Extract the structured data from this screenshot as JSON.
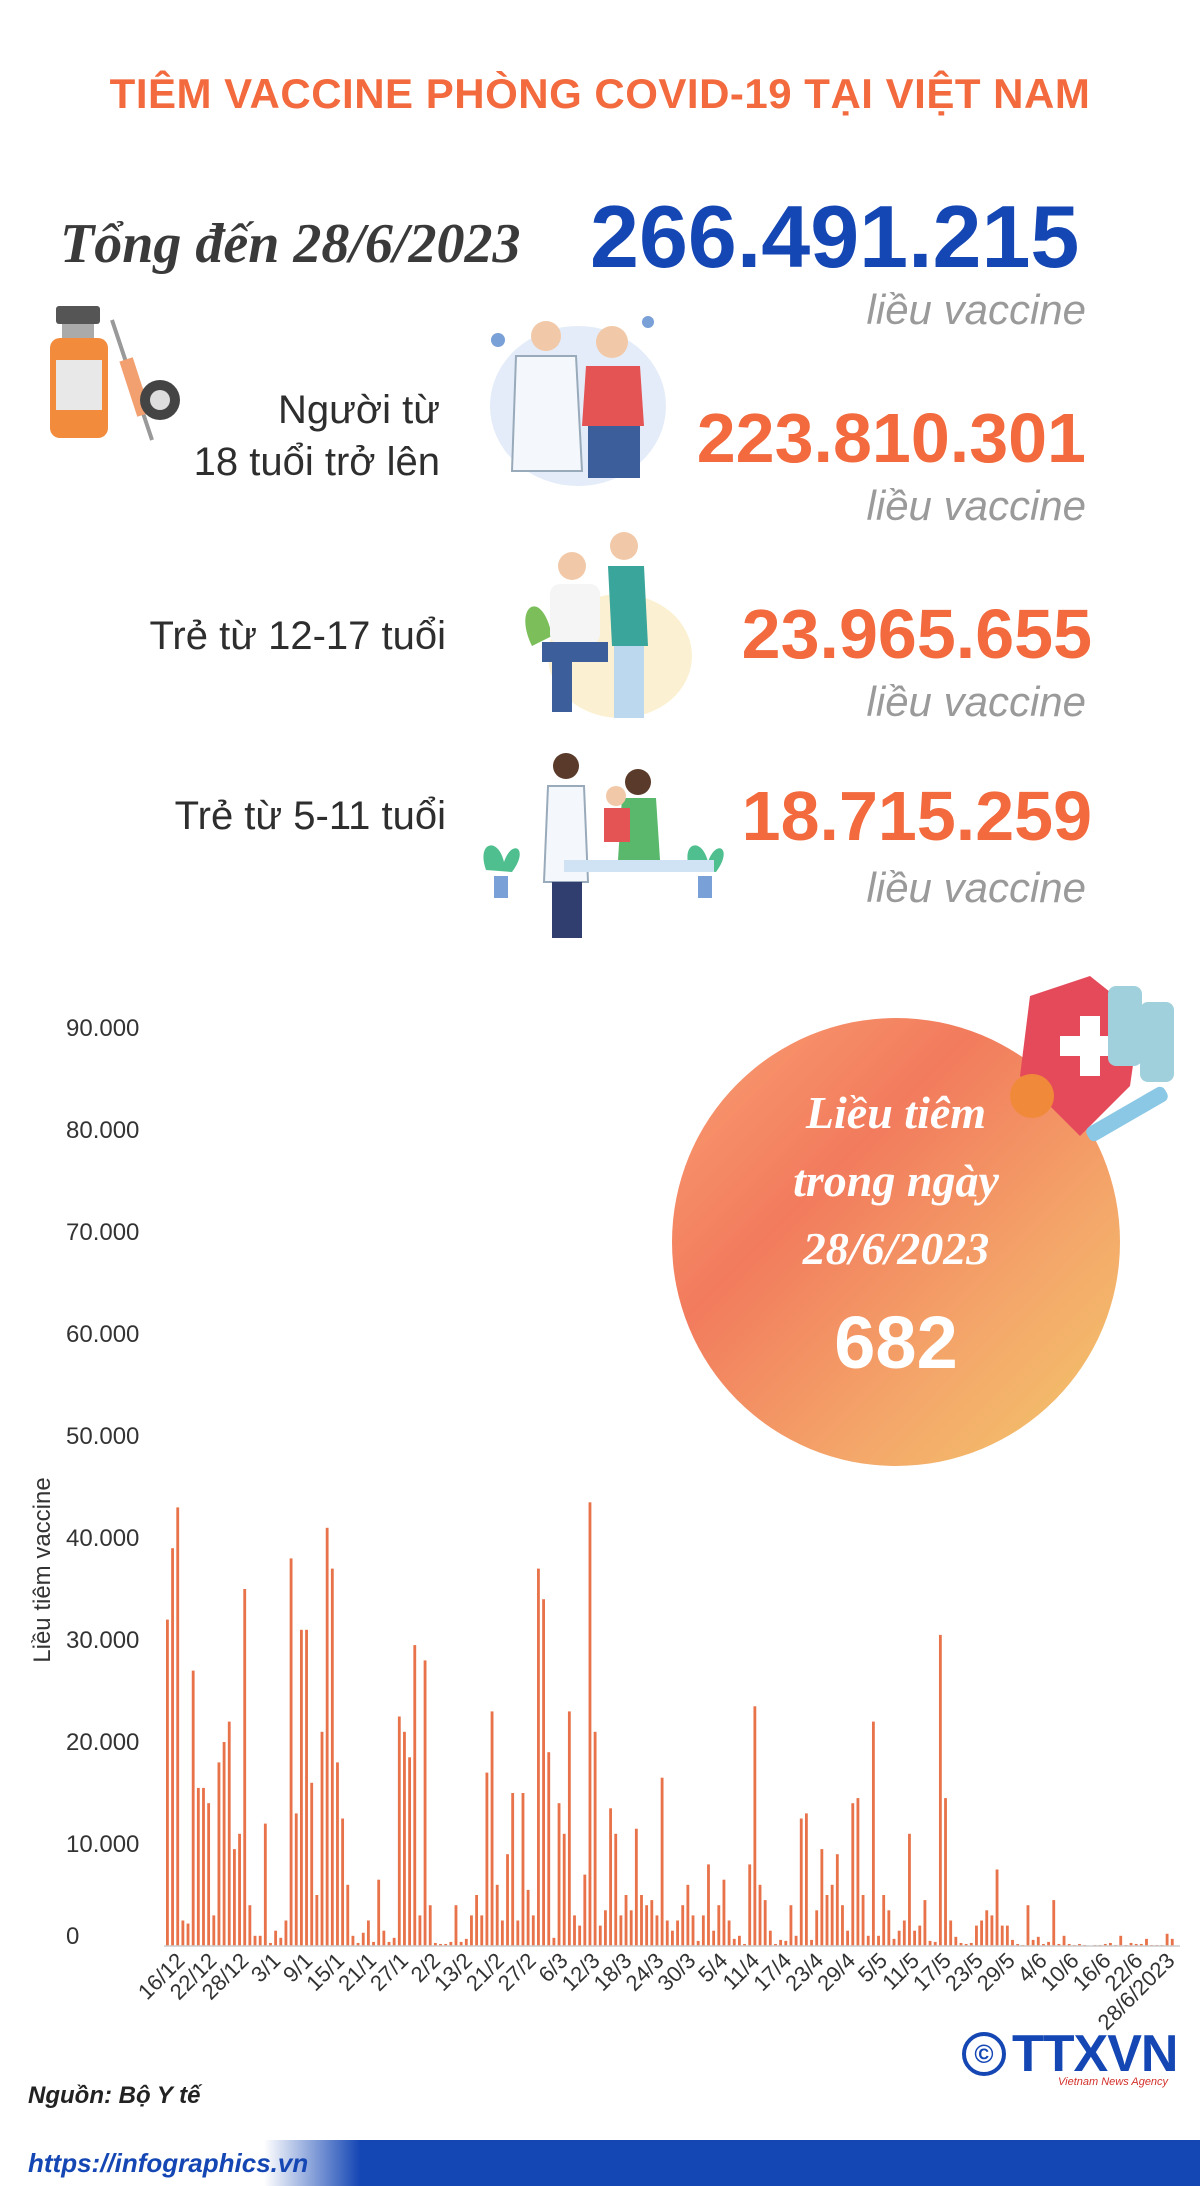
{
  "title": "TIÊM VACCINE PHÒNG COVID-19 TẠI VIỆT NAM",
  "total": {
    "label": "Tổng đến 28/6/2023",
    "value": "266.491.215",
    "unit": "liều vaccine"
  },
  "groups": [
    {
      "label_line1": "Người từ",
      "label_line2": "18 tuổi trở lên",
      "value": "223.810.301",
      "unit": "liều vaccine"
    },
    {
      "label_line1": "Trẻ từ 12-17 tuổi",
      "value": "23.965.655",
      "unit": "liều vaccine"
    },
    {
      "label_line1": "Trẻ từ 5-11 tuổi",
      "value": "18.715.259",
      "unit": "liều vaccine"
    }
  ],
  "daily": {
    "line1": "Liều tiêm",
    "line2": "trong ngày",
    "line3": "28/6/2023",
    "value": "682"
  },
  "chart_data": {
    "type": "bar",
    "ylabel": "Liều tiêm vaccine",
    "ylim": [
      0,
      90000
    ],
    "yticks": [
      {
        "v": 0,
        "label": "0"
      },
      {
        "v": 10000,
        "label": "10.000"
      },
      {
        "v": 20000,
        "label": "20.000"
      },
      {
        "v": 30000,
        "label": "30.000"
      },
      {
        "v": 40000,
        "label": "40.000"
      },
      {
        "v": 50000,
        "label": "50.000"
      },
      {
        "v": 60000,
        "label": "60.000"
      },
      {
        "v": 70000,
        "label": "70.000"
      },
      {
        "v": 80000,
        "label": "80.000"
      },
      {
        "v": 90000,
        "label": "90.000"
      }
    ],
    "tick_labels": [
      "16/12",
      "22/12",
      "28/12",
      "3/1",
      "9/1",
      "15/1",
      "21/1",
      "27/1",
      "2/2",
      "13/2",
      "21/2",
      "27/2",
      "6/3",
      "12/3",
      "18/3",
      "24/3",
      "30/3",
      "5/4",
      "11/4",
      "17/4",
      "23/4",
      "29/4",
      "5/5",
      "11/5",
      "17/5",
      "23/5",
      "29/5",
      "4/6",
      "10/6",
      "16/6",
      "22/6",
      "28/6/2023"
    ],
    "values": [
      32000,
      39000,
      43000,
      2500,
      2200,
      27000,
      15500,
      15500,
      14000,
      3000,
      18000,
      20000,
      22000,
      9500,
      11000,
      35000,
      4000,
      1000,
      1000,
      12000,
      300,
      1500,
      800,
      2500,
      38000,
      13000,
      31000,
      31000,
      16000,
      5000,
      21000,
      41000,
      37000,
      18000,
      12500,
      6000,
      1000,
      300,
      1300,
      2500,
      400,
      6500,
      1500,
      400,
      800,
      22500,
      21000,
      18500,
      29500,
      3000,
      28000,
      4000,
      300,
      200,
      200,
      400,
      4000,
      400,
      700,
      3000,
      5000,
      3000,
      17000,
      23000,
      6000,
      2500,
      9000,
      15000,
      2500,
      15000,
      5500,
      3000,
      37000,
      34000,
      19000,
      800,
      14000,
      11000,
      23000,
      3000,
      2000,
      7000,
      43500,
      21000,
      2000,
      3500,
      13500,
      11000,
      3000,
      5000,
      3500,
      11500,
      5000,
      4000,
      4500,
      3000,
      16500,
      2500,
      1500,
      2500,
      4000,
      6000,
      3000,
      500,
      3000,
      8000,
      1500,
      4000,
      6500,
      2500,
      700,
      1000,
      200,
      8000,
      23500,
      6000,
      4500,
      1500,
      200,
      600,
      500,
      4000,
      1000,
      12500,
      13000,
      600,
      3500,
      9500,
      5000,
      6000,
      9000,
      4000,
      1500,
      14000,
      14500,
      5000,
      1000,
      22000,
      1000,
      5000,
      3500,
      700,
      1500,
      2500,
      11000,
      1500,
      2000,
      4500,
      500,
      400,
      30500,
      14500,
      2500,
      900,
      300,
      200,
      300,
      2000,
      2500,
      3500,
      3000,
      7500,
      2000,
      2000,
      600,
      200,
      100,
      4000,
      600,
      900,
      200,
      400,
      4500,
      200,
      1000,
      200,
      100,
      200,
      100,
      50,
      100,
      100,
      200,
      300,
      100,
      1000,
      100,
      300,
      200,
      200,
      700,
      100,
      100,
      100,
      1200,
      700
    ]
  },
  "source": "Nguồn: Bộ Y tế",
  "footer_url": "https://infographics.vn",
  "logo": {
    "copyright": "©",
    "text": "TTXVN",
    "sub": "Vietnam News Agency"
  },
  "colors": {
    "accent": "#f26a3d",
    "brand": "#1446b4",
    "bar": "#e8734a"
  }
}
